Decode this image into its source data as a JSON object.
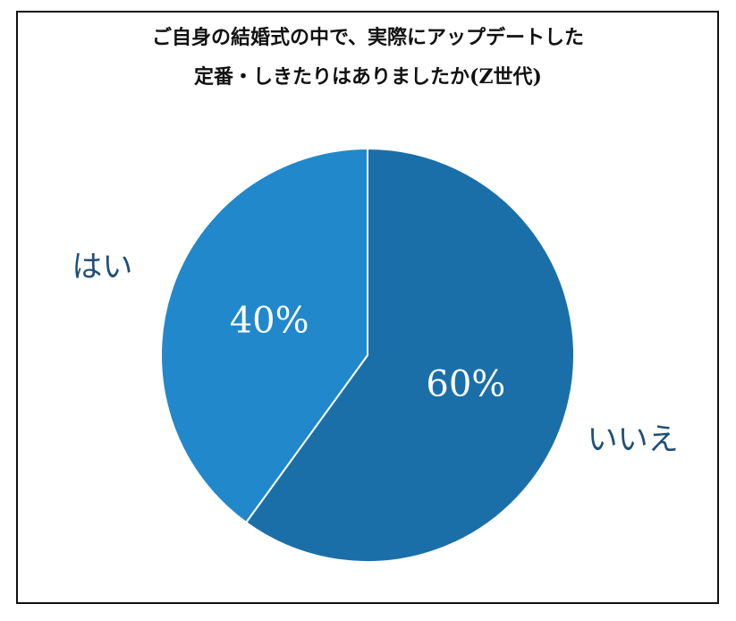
{
  "chart_data": {
    "type": "pie",
    "title_lines": [
      "ご自身の結婚式の中で、実際にアップデートした",
      "定番・しきたりはありましたか(Z世代)"
    ],
    "slices": [
      {
        "label": "いいえ",
        "value": 60,
        "value_label": "60%",
        "color": "#1b6fa8"
      },
      {
        "label": "はい",
        "value": 40,
        "value_label": "40%",
        "color": "#2188cc"
      }
    ],
    "start": "12 o'clock",
    "direction": "clockwise",
    "category_label_color": "#1f4f7a",
    "value_label_color": "#ffffff"
  }
}
